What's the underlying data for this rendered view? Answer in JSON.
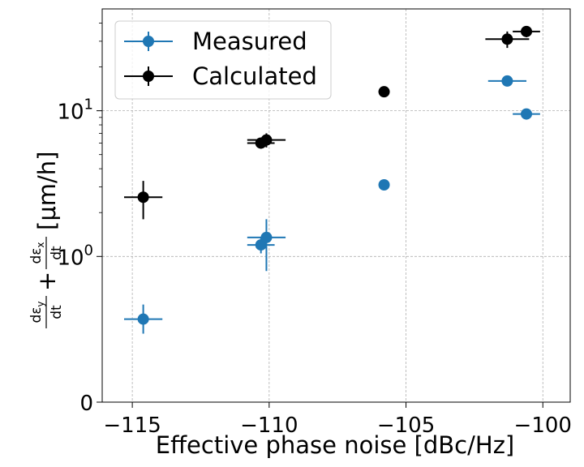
{
  "chart_data": {
    "type": "scatter",
    "xlabel": "Effective phase noise [dBc/Hz]",
    "ylabel": "dεy/dt + dεx/dt [μm/h]",
    "ylabel_parts": {
      "t1": "dε",
      "s1": "y",
      "d1": "dt",
      "plus": "+",
      "t2": "dε",
      "s2": "x",
      "d2": "dt",
      "unit": "[μm/h]"
    },
    "xlim": [
      -116.1,
      -99.0
    ],
    "ylim": [
      0,
      50
    ],
    "yscale": "symlog",
    "symlog_linthresh": 1,
    "grid": true,
    "legend_position": "upper-left",
    "x_ticks": [
      {
        "value": -115,
        "label": "−115"
      },
      {
        "value": -110,
        "label": "−110"
      },
      {
        "value": -105,
        "label": "−105"
      },
      {
        "value": -100,
        "label": "−100"
      }
    ],
    "y_ticks": [
      {
        "value": 0,
        "label": "0"
      },
      {
        "value": 1,
        "base": "10",
        "exp": "0"
      },
      {
        "value": 10,
        "base": "10",
        "exp": "1"
      }
    ],
    "series": [
      {
        "name": "Measured",
        "color": "#1f77b4",
        "points": [
          {
            "x": -114.6,
            "y": 0.57,
            "xerr": 0.7,
            "yerr": 0.1
          },
          {
            "x": -110.3,
            "y": 1.2,
            "xerr": 0.5,
            "yerr": 0.15
          },
          {
            "x": -110.1,
            "y": 1.35,
            "xerr": 0.7,
            "yerr": 0.45
          },
          {
            "x": -105.8,
            "y": 3.1,
            "xerr": 0.2,
            "yerr": 0.1
          },
          {
            "x": -101.3,
            "y": 16,
            "xerr": 0.7,
            "yerr": 0.3
          },
          {
            "x": -100.6,
            "y": 9.5,
            "xerr": 0.5,
            "yerr": 0.2
          }
        ]
      },
      {
        "name": "Calculated",
        "color": "#000000",
        "points": [
          {
            "x": -114.6,
            "y": 2.55,
            "xerr": 0.7,
            "yerr": 0.75
          },
          {
            "x": -110.3,
            "y": 6.0,
            "xerr": 0.5,
            "yerr": 0.5
          },
          {
            "x": -110.1,
            "y": 6.3,
            "xerr": 0.7,
            "yerr": 0.7
          },
          {
            "x": -105.8,
            "y": 13.5,
            "xerr": 0.2,
            "yerr": 0.5
          },
          {
            "x": -101.3,
            "y": 31,
            "xerr": 0.8,
            "yerr": 4
          },
          {
            "x": -100.6,
            "y": 35,
            "xerr": 0.5,
            "yerr": 3
          }
        ]
      }
    ]
  }
}
